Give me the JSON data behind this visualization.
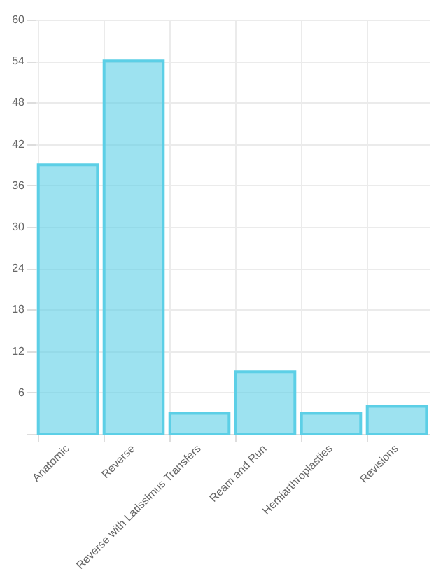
{
  "chart_data": {
    "type": "bar",
    "categories": [
      "Anatomic",
      "Reverse",
      "Reverse with Latissimus Transfers",
      "Ream and Run",
      "Hemiarthroplasties",
      "Revisions"
    ],
    "values": [
      39,
      54,
      3,
      9,
      3,
      4
    ],
    "color": "#5ccfe6",
    "ylim": [
      0,
      60
    ],
    "yticks": [
      {
        "value": 0,
        "label": null
      },
      6,
      12,
      18,
      24,
      30,
      36,
      42,
      48,
      54,
      60
    ],
    "grid": true
  }
}
